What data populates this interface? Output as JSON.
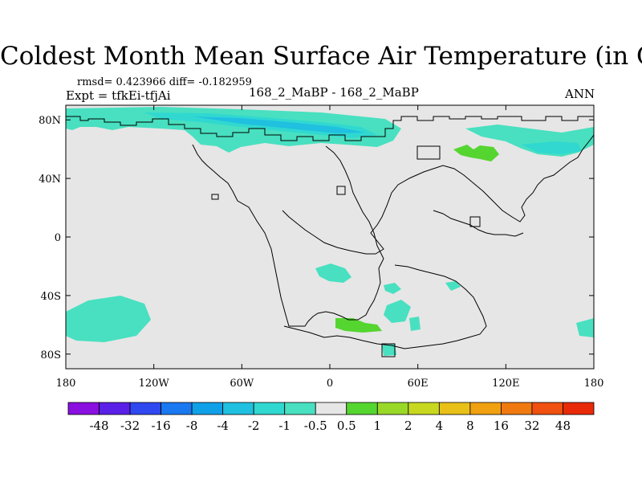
{
  "title": "Coldest Month Mean Surface Air Temperature (in C)",
  "stats": "rmsd= 0.423966 diff= -0.182959",
  "expt": "Expt = tfkEi-tfjAi",
  "center_label": "168_2_MaBP - 168_2_MaBP",
  "season": "ANN",
  "map": {
    "lon_range": [
      -180,
      180
    ],
    "lat_range": [
      -90,
      90
    ],
    "lon_ticks": [
      {
        "v": -180,
        "label": "180"
      },
      {
        "v": -120,
        "label": "120W"
      },
      {
        "v": -60,
        "label": "60W"
      },
      {
        "v": 0,
        "label": "0"
      },
      {
        "v": 60,
        "label": "60E"
      },
      {
        "v": 120,
        "label": "120E"
      },
      {
        "v": 180,
        "label": "180"
      }
    ],
    "lat_ticks": [
      {
        "v": 80,
        "label": "80N"
      },
      {
        "v": 40,
        "label": "40N"
      },
      {
        "v": 0,
        "label": "0"
      },
      {
        "v": -40,
        "label": "40S"
      },
      {
        "v": -80,
        "label": "80S"
      }
    ],
    "background_color": "#e6e6e6"
  },
  "colorbar": {
    "colors": [
      "#8a10e0",
      "#5a20e8",
      "#2f48f0",
      "#1a78f0",
      "#10a0e8",
      "#20c0e0",
      "#30d8d0",
      "#48e0c0",
      "#e6e6e6",
      "#55d530",
      "#9ad828",
      "#c8d820",
      "#e8c018",
      "#f0a010",
      "#f07a10",
      "#f05010",
      "#e82a08"
    ],
    "labels": [
      "-48",
      "-32",
      "-16",
      "-8",
      "-4",
      "-2",
      "-1",
      "-0.5",
      "0.5",
      "1",
      "2",
      "4",
      "8",
      "16",
      "32",
      "48"
    ]
  }
}
